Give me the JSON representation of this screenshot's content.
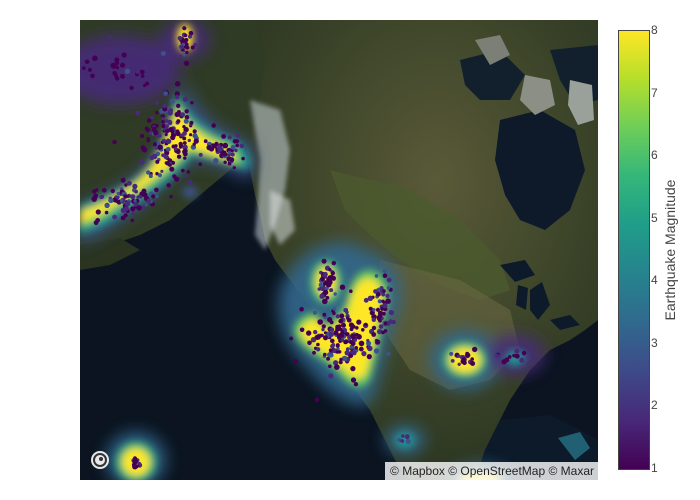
{
  "map": {
    "attribution": [
      {
        "label": "© Mapbox"
      },
      {
        "label": "© OpenStreetMap"
      },
      {
        "label": "© Maxar"
      }
    ],
    "colors": {
      "ocean": "#0b1420",
      "land_forest": "#2c3a22",
      "land_plains": "#6b6a44",
      "ice": "#c9d2d8",
      "heat_low": "#440154",
      "heat_high": "#fde725"
    }
  },
  "colorbar": {
    "title": "Earthquake Magnitude",
    "ticks": [
      "1",
      "2",
      "3",
      "4",
      "5",
      "6",
      "7",
      "8"
    ],
    "range": [
      1,
      8
    ]
  }
}
